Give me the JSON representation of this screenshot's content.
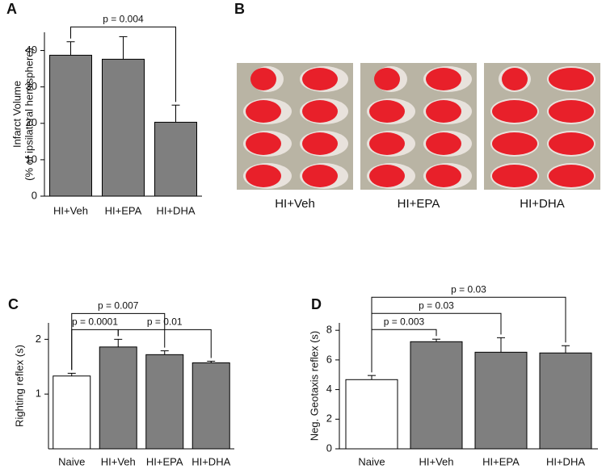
{
  "chart_data": [
    {
      "type": "bar",
      "panel_label": "A",
      "ylabel": [
        "Infarct Volume",
        "(% of ipsilateral hemisphere)"
      ],
      "categories": [
        "HI+Veh",
        "HI+EPA",
        "HI+DHA"
      ],
      "values": [
        38.7,
        37.6,
        20.3
      ],
      "errors": [
        3.7,
        6.2,
        4.7
      ],
      "colors": [
        "#7f7f7f",
        "#7f7f7f",
        "#7f7f7f"
      ],
      "ylim": [
        0,
        45
      ],
      "yticks": [
        0,
        10,
        20,
        30,
        40
      ],
      "annotations": [
        {
          "text": "p = 0.004",
          "from": "HI+Veh",
          "to": "HI+DHA"
        }
      ]
    },
    {
      "type": "bar",
      "panel_label": "C",
      "ylabel": [
        "Righting reflex (s)"
      ],
      "categories": [
        "Naive",
        "HI+Veh",
        "HI+EPA",
        "HI+DHA"
      ],
      "values": [
        1.33,
        1.86,
        1.72,
        1.57
      ],
      "errors": [
        0.05,
        0.14,
        0.07,
        0.03
      ],
      "colors": [
        "#ffffff",
        "#7f7f7f",
        "#7f7f7f",
        "#7f7f7f"
      ],
      "ylim": [
        0,
        2.3
      ],
      "yticks": [
        1,
        2
      ],
      "annotations": [
        {
          "text": "p = 0.0001",
          "from": "Naive",
          "to": "HI+Veh"
        },
        {
          "text": "p = 0.01",
          "from": "HI+Veh",
          "to": "HI+DHA"
        },
        {
          "text": "p = 0.007",
          "from": "Naive",
          "to": "HI+EPA"
        }
      ]
    },
    {
      "type": "bar",
      "panel_label": "D",
      "ylabel": [
        "Neg. Geotaxis reflex (s)"
      ],
      "categories": [
        "Naive",
        "HI+Veh",
        "HI+EPA",
        "HI+DHA"
      ],
      "values": [
        4.67,
        7.23,
        6.52,
        6.47
      ],
      "errors": [
        0.28,
        0.17,
        0.98,
        0.49
      ],
      "colors": [
        "#ffffff",
        "#7f7f7f",
        "#7f7f7f",
        "#7f7f7f"
      ],
      "ylim": [
        0,
        8.5
      ],
      "yticks": [
        0,
        2,
        4,
        6,
        8
      ],
      "annotations": [
        {
          "text": "p = 0.003",
          "from": "Naive",
          "to": "HI+Veh"
        },
        {
          "text": "p = 0.03",
          "from": "Naive",
          "to": "HI+EPA"
        },
        {
          "text": "p = 0.03",
          "from": "Naive",
          "to": "HI+DHA"
        }
      ]
    }
  ],
  "photo_panel": {
    "panel_label": "B",
    "captions": [
      "HI+Veh",
      "HI+EPA",
      "HI+DHA"
    ]
  }
}
